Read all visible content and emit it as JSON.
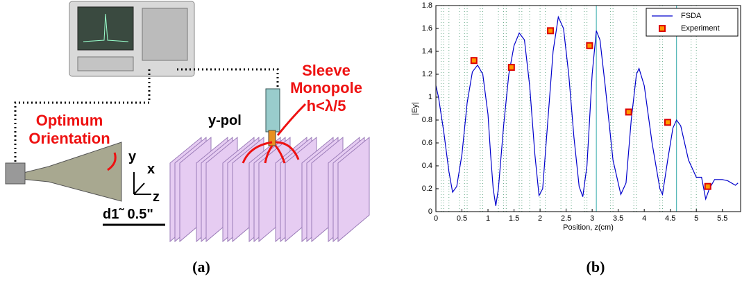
{
  "diagram": {
    "labels": {
      "sleeve": "Sleeve",
      "monopole": "Monopole",
      "height": "h<λ/5",
      "pol": "y-pol",
      "optimum": "Optimum",
      "orientation": "Orientation",
      "ax_y": "y",
      "ax_x": "x",
      "ax_z": "z",
      "spacing": "d1˜ 0.5\""
    },
    "caption": "(a)"
  },
  "chart_caption": "(b)",
  "chart_data": {
    "type": "line",
    "xlabel": "Position, z(cm)",
    "ylabel": "|Ey|",
    "xlim": [
      0,
      5.85
    ],
    "ylim": [
      0,
      1.8
    ],
    "xticks": [
      0,
      0.5,
      1,
      1.5,
      2,
      2.5,
      3,
      3.5,
      4,
      4.5,
      5,
      5.5
    ],
    "yticks": [
      0,
      0.2,
      0.4,
      0.6,
      0.8,
      1,
      1.2,
      1.4,
      1.6,
      1.8
    ],
    "legend": "upper right",
    "vlines": [
      0.1,
      0.15,
      0.25,
      0.45,
      0.55,
      0.6,
      0.85,
      0.9,
      1.2,
      1.3,
      1.35,
      1.6,
      1.65,
      1.8,
      2.0,
      2.1,
      2.4,
      2.5,
      2.6,
      2.85,
      2.9,
      3.35,
      3.4,
      3.8,
      3.85,
      4.3,
      4.35,
      4.9,
      5.0
    ],
    "vlines_solid": [
      3.08,
      4.62
    ],
    "series": [
      {
        "name": "FSDA",
        "type": "line",
        "color": "#0000cc",
        "x": [
          0,
          0.05,
          0.15,
          0.25,
          0.32,
          0.4,
          0.5,
          0.6,
          0.7,
          0.8,
          0.9,
          1.0,
          1.05,
          1.1,
          1.15,
          1.2,
          1.3,
          1.4,
          1.5,
          1.6,
          1.7,
          1.8,
          1.9,
          1.98,
          2.05,
          2.15,
          2.25,
          2.35,
          2.45,
          2.55,
          2.65,
          2.75,
          2.82,
          2.9,
          3.0,
          3.08,
          3.15,
          3.25,
          3.4,
          3.55,
          3.65,
          3.75,
          3.85,
          3.9,
          4.0,
          4.15,
          4.3,
          4.35,
          4.45,
          4.55,
          4.62,
          4.7,
          4.85,
          5.0,
          5.1,
          5.18,
          5.25,
          5.35,
          5.5,
          5.6,
          5.75,
          5.8
        ],
        "values": [
          1.1,
          1.0,
          0.7,
          0.35,
          0.17,
          0.22,
          0.5,
          0.95,
          1.22,
          1.28,
          1.2,
          0.85,
          0.5,
          0.2,
          0.05,
          0.2,
          0.75,
          1.2,
          1.45,
          1.56,
          1.5,
          1.1,
          0.5,
          0.14,
          0.2,
          0.8,
          1.4,
          1.7,
          1.6,
          1.2,
          0.65,
          0.22,
          0.13,
          0.4,
          1.2,
          1.58,
          1.5,
          1.1,
          0.45,
          0.15,
          0.25,
          0.8,
          1.2,
          1.25,
          1.1,
          0.6,
          0.2,
          0.15,
          0.45,
          0.73,
          0.8,
          0.75,
          0.45,
          0.3,
          0.3,
          0.11,
          0.2,
          0.28,
          0.28,
          0.27,
          0.23,
          0.25
        ]
      },
      {
        "name": "Experiment",
        "type": "scatter",
        "color": "#dd0000",
        "fill": "#ff9900",
        "x": [
          0.73,
          1.45,
          2.2,
          2.95,
          3.7,
          4.45,
          5.22
        ],
        "values": [
          1.32,
          1.26,
          1.58,
          1.45,
          0.87,
          0.78,
          0.22
        ]
      }
    ]
  }
}
